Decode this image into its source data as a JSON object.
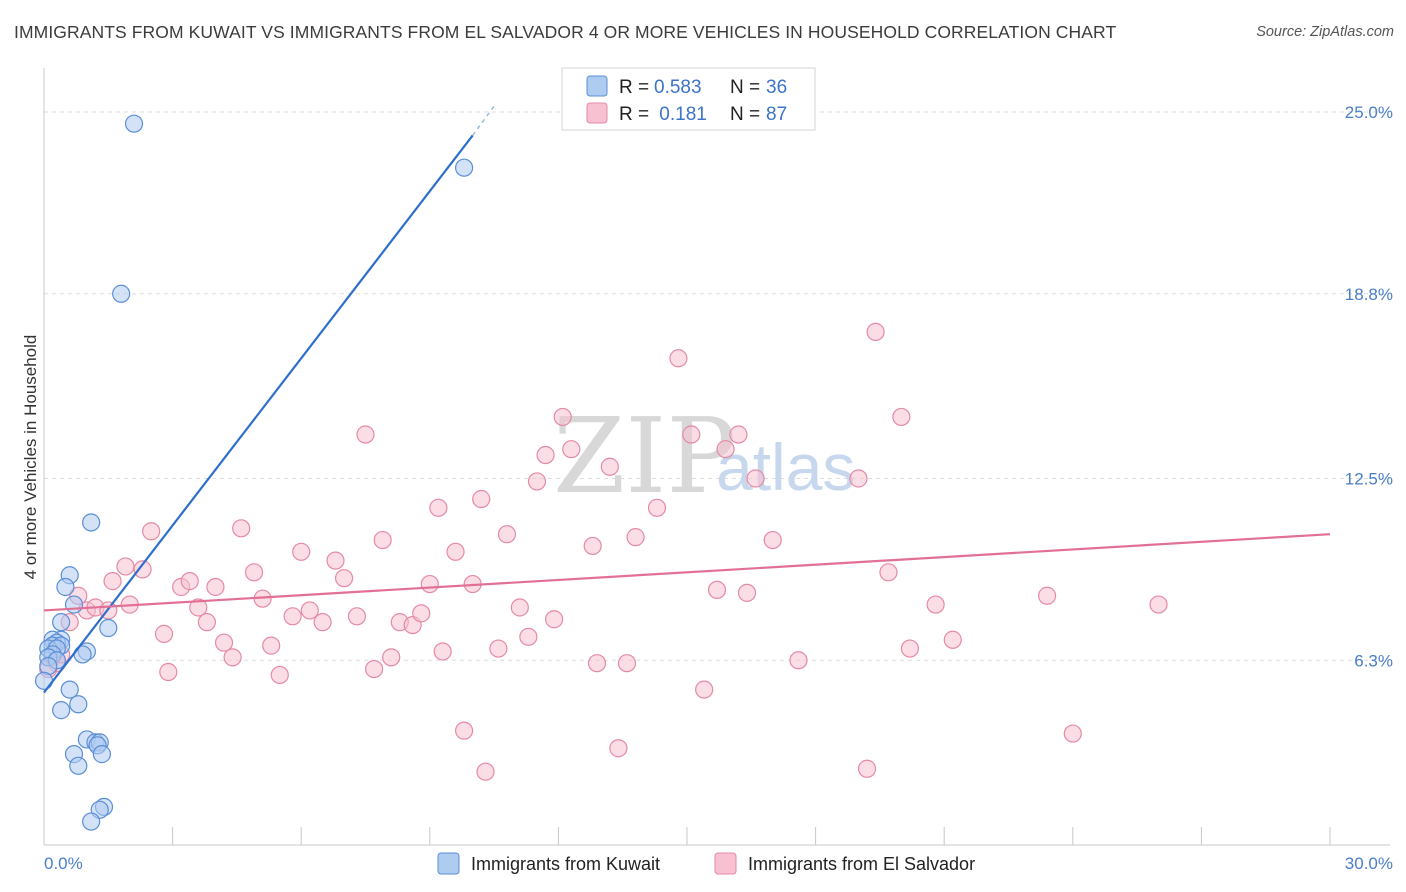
{
  "chart_data": {
    "type": "scatter",
    "title": "IMMIGRANTS FROM KUWAIT VS IMMIGRANTS FROM EL SALVADOR 4 OR MORE VEHICLES IN HOUSEHOLD CORRELATION CHART",
    "source": "Source: ZipAtlas.com",
    "xlabel": "",
    "ylabel": "4 or more Vehicles in Household",
    "xlim": [
      0,
      30
    ],
    "ylim": [
      0,
      26.5
    ],
    "x_tick_labels": {
      "min": "0.0%",
      "max": "30.0%"
    },
    "y_ticks": [
      {
        "value": 6.3,
        "label": "6.3%"
      },
      {
        "value": 12.5,
        "label": "12.5%"
      },
      {
        "value": 18.8,
        "label": "18.8%"
      },
      {
        "value": 25.0,
        "label": "25.0%"
      }
    ],
    "x_minor_ticks": [
      3,
      6,
      9,
      12,
      15,
      18,
      21,
      24,
      27,
      30
    ],
    "watermark": {
      "zip": "ZIP",
      "atlas": "atlas"
    },
    "legend": {
      "rows": [
        {
          "r_label": "R =",
          "r_value": "0.583",
          "n_label": "N =",
          "n_value": "36"
        },
        {
          "r_label": "R =",
          "r_value": " 0.181",
          "n_label": "N =",
          "n_value": "87"
        }
      ]
    },
    "series": [
      {
        "name": "Immigrants from Kuwait",
        "fill": "#aecbf0",
        "stroke": "#5b8fd6",
        "trend": {
          "x0": 0,
          "y0": 5.2,
          "x1": 10.0,
          "y1": 24.2,
          "dash_to_x": 10.5,
          "dash_to_y": 25.2,
          "color": "#2f6fcc"
        },
        "points": [
          [
            2.1,
            24.6
          ],
          [
            9.8,
            23.1
          ],
          [
            1.8,
            18.8
          ],
          [
            1.1,
            11.0
          ],
          [
            0.6,
            9.2
          ],
          [
            0.5,
            8.8
          ],
          [
            0.7,
            8.2
          ],
          [
            0.4,
            7.6
          ],
          [
            1.5,
            7.4
          ],
          [
            0.4,
            7.0
          ],
          [
            0.2,
            7.0
          ],
          [
            0.3,
            6.9
          ],
          [
            0.2,
            6.8
          ],
          [
            0.4,
            6.8
          ],
          [
            0.1,
            6.7
          ],
          [
            0.3,
            6.7
          ],
          [
            1.0,
            6.6
          ],
          [
            0.9,
            6.5
          ],
          [
            0.2,
            6.5
          ],
          [
            0.1,
            6.4
          ],
          [
            0.3,
            6.3
          ],
          [
            0.1,
            6.1
          ],
          [
            0.0,
            5.6
          ],
          [
            0.6,
            5.3
          ],
          [
            0.8,
            4.8
          ],
          [
            0.4,
            4.6
          ],
          [
            1.0,
            3.6
          ],
          [
            1.2,
            3.5
          ],
          [
            1.3,
            3.5
          ],
          [
            1.25,
            3.4
          ],
          [
            0.7,
            3.1
          ],
          [
            1.35,
            3.1
          ],
          [
            0.8,
            2.7
          ],
          [
            1.4,
            1.3
          ],
          [
            1.3,
            1.2
          ],
          [
            1.1,
            0.8
          ]
        ]
      },
      {
        "name": "Immigrants from El Salvador",
        "fill": "#f7c1d2",
        "stroke": "#e58aa6",
        "trend": {
          "x0": 0,
          "y0": 8.0,
          "x1": 30.0,
          "y1": 10.6,
          "color": "#e27096"
        },
        "points": [
          [
            0.2,
            6.4
          ],
          [
            0.3,
            6.2
          ],
          [
            0.1,
            6.0
          ],
          [
            0.4,
            6.5
          ],
          [
            0.6,
            7.6
          ],
          [
            0.8,
            8.5
          ],
          [
            1.0,
            8.0
          ],
          [
            1.2,
            8.1
          ],
          [
            1.5,
            8.0
          ],
          [
            1.6,
            9.0
          ],
          [
            1.9,
            9.5
          ],
          [
            2.3,
            9.4
          ],
          [
            2.5,
            10.7
          ],
          [
            2.0,
            8.2
          ],
          [
            2.8,
            7.2
          ],
          [
            2.9,
            5.9
          ],
          [
            3.2,
            8.8
          ],
          [
            3.4,
            9.0
          ],
          [
            3.6,
            8.1
          ],
          [
            3.8,
            7.6
          ],
          [
            4.0,
            8.8
          ],
          [
            4.2,
            6.9
          ],
          [
            4.4,
            6.4
          ],
          [
            4.6,
            10.8
          ],
          [
            4.9,
            9.3
          ],
          [
            5.1,
            8.4
          ],
          [
            5.3,
            6.8
          ],
          [
            5.5,
            5.8
          ],
          [
            5.8,
            7.8
          ],
          [
            6.0,
            10.0
          ],
          [
            6.2,
            8.0
          ],
          [
            6.5,
            7.6
          ],
          [
            6.8,
            9.7
          ],
          [
            7.0,
            9.1
          ],
          [
            7.3,
            7.8
          ],
          [
            7.5,
            14.0
          ],
          [
            7.7,
            6.0
          ],
          [
            7.9,
            10.4
          ],
          [
            8.1,
            6.4
          ],
          [
            8.3,
            7.6
          ],
          [
            8.6,
            7.5
          ],
          [
            8.8,
            7.9
          ],
          [
            9.0,
            8.9
          ],
          [
            9.2,
            11.5
          ],
          [
            9.3,
            6.6
          ],
          [
            9.6,
            10.0
          ],
          [
            9.8,
            3.9
          ],
          [
            10.0,
            8.9
          ],
          [
            10.2,
            11.8
          ],
          [
            10.3,
            2.5
          ],
          [
            10.6,
            6.7
          ],
          [
            10.8,
            10.6
          ],
          [
            11.1,
            8.1
          ],
          [
            11.3,
            7.1
          ],
          [
            11.5,
            12.4
          ],
          [
            11.7,
            13.3
          ],
          [
            11.9,
            7.7
          ],
          [
            12.1,
            14.6
          ],
          [
            12.3,
            13.5
          ],
          [
            12.8,
            10.2
          ],
          [
            12.9,
            6.2
          ],
          [
            13.2,
            12.9
          ],
          [
            13.4,
            3.3
          ],
          [
            13.6,
            6.2
          ],
          [
            13.8,
            10.5
          ],
          [
            14.3,
            11.5
          ],
          [
            14.8,
            16.6
          ],
          [
            15.1,
            14.0
          ],
          [
            15.4,
            5.3
          ],
          [
            15.7,
            8.7
          ],
          [
            15.9,
            13.5
          ],
          [
            16.2,
            14.0
          ],
          [
            16.4,
            8.6
          ],
          [
            16.6,
            12.5
          ],
          [
            17.0,
            10.4
          ],
          [
            17.6,
            6.3
          ],
          [
            19.0,
            12.5
          ],
          [
            19.2,
            2.6
          ],
          [
            19.4,
            17.5
          ],
          [
            19.7,
            9.3
          ],
          [
            20.0,
            14.6
          ],
          [
            20.2,
            6.7
          ],
          [
            20.8,
            8.2
          ],
          [
            21.2,
            7.0
          ],
          [
            23.4,
            8.5
          ],
          [
            24.0,
            3.8
          ],
          [
            26.0,
            8.2
          ]
        ]
      }
    ]
  }
}
